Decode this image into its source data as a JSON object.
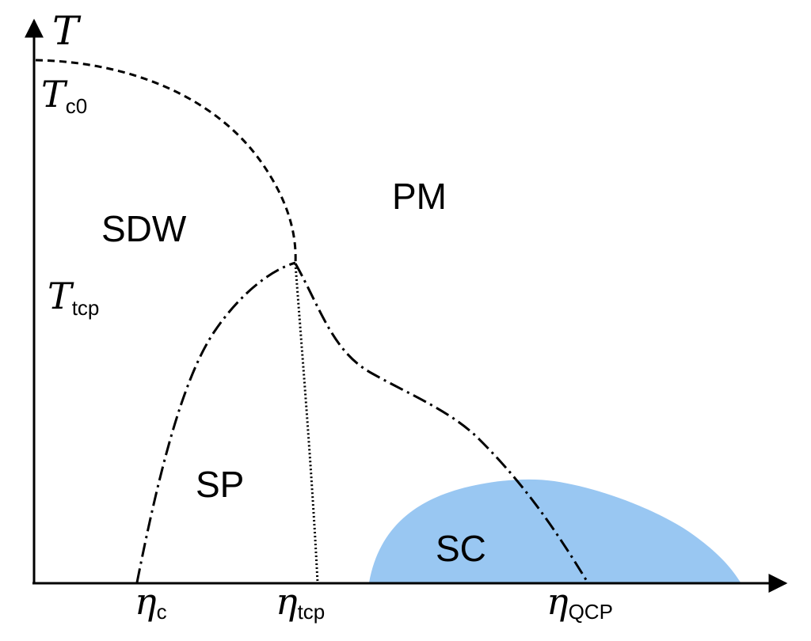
{
  "axes": {
    "y_label": "T",
    "y_ticks": [
      {
        "main": "T",
        "sub": "c0"
      },
      {
        "main": "T",
        "sub": "tcp"
      }
    ],
    "x_ticks": [
      {
        "main": "η",
        "sub": "c"
      },
      {
        "main": "η",
        "sub": "tcp"
      },
      {
        "main": "η",
        "sub": "QCP"
      }
    ]
  },
  "regions": {
    "sdw": "SDW",
    "pm": "PM",
    "sp": "SP",
    "sc": "SC"
  },
  "colors": {
    "sc_fill": "#99c7f2",
    "line": "#000000"
  }
}
